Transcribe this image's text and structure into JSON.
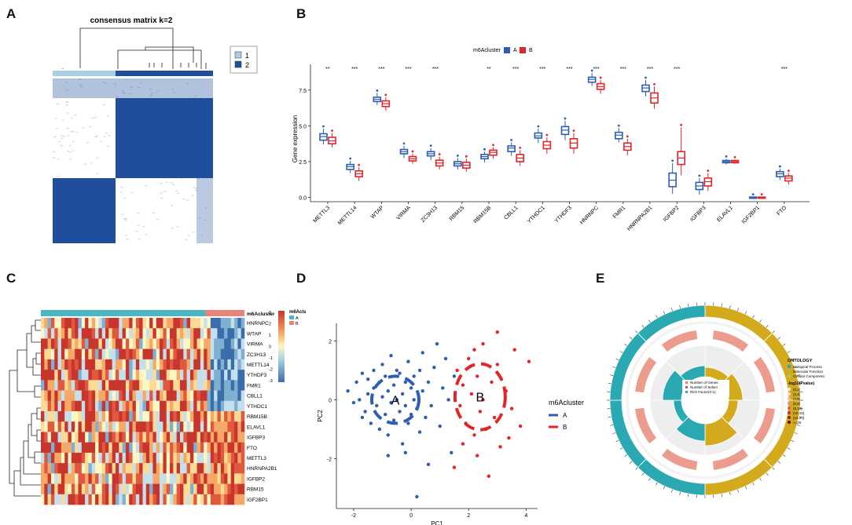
{
  "panels": {
    "A": {
      "letter": "A",
      "title": "consensus matrix k=2",
      "legend": [
        "1",
        "2"
      ],
      "colors": {
        "c1": "#a6cfe3",
        "c2": "#1f4f9c"
      }
    },
    "B": {
      "letter": "B",
      "legend_title": "m6Acluster",
      "legend_items": [
        "A",
        "B"
      ],
      "ylabel": "Gene expression",
      "colors": {
        "A": "#2c5fb3",
        "B": "#e0262b"
      }
    },
    "C": {
      "letter": "C",
      "annotation_label": "m6Acluster",
      "legend_title": "m6Acls",
      "legend_items": [
        "A",
        "B"
      ],
      "scale_ticks": [
        "3",
        "2",
        "1",
        "0",
        "-1",
        "-2",
        "-3"
      ],
      "genes": [
        "HNRNPC",
        "WTAP",
        "VIRMA",
        "ZC3H13",
        "METTL14",
        "YTHDF3",
        "FMR1",
        "CBLL1",
        "YTHDC1",
        "RBM15B",
        "ELAVL1",
        "IGFBP3",
        "FTO",
        "METTL3",
        "HNRNPA2B1",
        "IGFBP2",
        "RBM15",
        "IGF2BP1"
      ],
      "colors": {
        "A": "#4ab8c1",
        "B": "#e8837a"
      }
    },
    "D": {
      "letter": "D",
      "legend_title": "m6Acluster",
      "legend_items": [
        "A",
        "B"
      ],
      "colors": {
        "A": "#2c5fb3",
        "B": "#e0262b"
      }
    },
    "E": {
      "letter": "E",
      "ontology_title": "ONTOLOGY",
      "ontology_items": [
        "Biological Process",
        "Molecular Function",
        "Cellular Component"
      ],
      "pval_title": "-log10(Pvalue)",
      "pval_items": [
        "(0,2]",
        "(2,4]",
        "(4,6]",
        "(6,8]",
        "(8,10]",
        "(10,15]",
        "(15,20]",
        ">=20"
      ],
      "center_legend": [
        "Number of Genes",
        "Number of Select",
        "Rich Factor(0-1)"
      ],
      "colors": {
        "bp": "#2aa9b3",
        "mf": "#d4aa1d",
        "cc": "#a8c85a"
      }
    }
  },
  "chart_data": [
    {
      "panel": "A",
      "type": "heatmap",
      "title": "consensus matrix k=2",
      "clusters": [
        "1",
        "2"
      ],
      "cluster_fraction": [
        0.29,
        0.71
      ],
      "description_values": "block-diagonal consensus matrix with two clusters"
    },
    {
      "panel": "B",
      "type": "box",
      "ylabel": "Gene expression",
      "ylim": [
        -0.3,
        9.3
      ],
      "yticks": [
        0.0,
        2.5,
        5.0,
        7.5
      ],
      "ytick_labels": [
        "0.0",
        "2.5",
        "5.0",
        "7.5"
      ],
      "categories": [
        "METTL3",
        "METTL14",
        "WTAP",
        "VIRMA",
        "ZC3H13",
        "RBM15",
        "RBM15B",
        "CBLL1",
        "YTHDC1",
        "YTHDF3",
        "HNRNPC",
        "FMR1",
        "HNRNPA2B1",
        "IGFBP2",
        "IGFBP3",
        "ELAVL1",
        "IGF2BP1",
        "FTO"
      ],
      "significance": [
        "**",
        "***",
        "***",
        "***",
        "***",
        "",
        "**",
        "***",
        "***",
        "***",
        "***",
        "***",
        "***",
        "***",
        "",
        "",
        "",
        "***"
      ],
      "series": [
        {
          "name": "A",
          "median": [
            4.25,
            2.15,
            6.85,
            3.2,
            3.05,
            2.35,
            2.85,
            3.45,
            4.3,
            4.7,
            8.25,
            4.35,
            7.65,
            1.2,
            0.8,
            2.5,
            0.0,
            1.65
          ],
          "q1": [
            4.0,
            1.95,
            6.7,
            3.05,
            2.9,
            2.2,
            2.7,
            3.2,
            4.15,
            4.4,
            8.05,
            4.1,
            7.4,
            0.75,
            0.55,
            2.42,
            -0.02,
            1.45
          ],
          "q3": [
            4.45,
            2.3,
            7.0,
            3.35,
            3.2,
            2.5,
            3.0,
            3.6,
            4.5,
            4.95,
            8.4,
            4.55,
            7.85,
            1.7,
            1.05,
            2.58,
            0.02,
            1.8
          ],
          "wlo": [
            3.7,
            1.7,
            6.45,
            2.75,
            2.6,
            1.95,
            2.45,
            2.9,
            3.8,
            4.0,
            7.8,
            3.85,
            7.05,
            0.25,
            0.2,
            2.3,
            -0.05,
            1.2
          ],
          "whi": [
            4.8,
            2.55,
            7.3,
            3.6,
            3.45,
            2.75,
            3.2,
            3.85,
            4.8,
            5.35,
            8.7,
            4.85,
            8.2,
            2.4,
            1.35,
            2.7,
            0.05,
            2.0
          ]
        },
        {
          "name": "B",
          "median": [
            3.95,
            1.65,
            6.55,
            2.7,
            2.4,
            2.25,
            3.15,
            2.75,
            3.65,
            3.8,
            7.75,
            3.55,
            6.95,
            2.75,
            1.1,
            2.5,
            0.0,
            1.35
          ],
          "q1": [
            3.75,
            1.45,
            6.35,
            2.55,
            2.2,
            2.05,
            2.95,
            2.5,
            3.4,
            3.45,
            7.55,
            3.3,
            6.6,
            2.3,
            0.8,
            2.42,
            -0.02,
            1.15
          ],
          "q3": [
            4.2,
            1.85,
            6.75,
            2.85,
            2.6,
            2.45,
            3.3,
            3.0,
            3.9,
            4.1,
            7.95,
            3.8,
            7.3,
            3.2,
            1.35,
            2.58,
            0.02,
            1.5
          ],
          "wlo": [
            3.5,
            1.15,
            6.05,
            2.35,
            1.95,
            1.8,
            2.7,
            2.2,
            3.05,
            3.05,
            7.25,
            2.95,
            6.2,
            1.55,
            0.45,
            2.35,
            -0.05,
            0.9
          ],
          "whi": [
            4.5,
            2.1,
            7.0,
            3.05,
            2.85,
            2.7,
            3.5,
            3.3,
            4.2,
            4.5,
            8.2,
            4.1,
            7.75,
            4.9,
            1.7,
            2.65,
            0.05,
            1.7
          ]
        }
      ]
    },
    {
      "panel": "C",
      "type": "heatmap",
      "rows": 18,
      "cols": 60,
      "cluster_split_col": 50,
      "value_range": [
        -3,
        3
      ]
    },
    {
      "panel": "D",
      "type": "scatter",
      "xlabel": "PC1",
      "ylabel": "PC2",
      "xlim": [
        -2.6,
        4.4
      ],
      "ylim": [
        -3.7,
        2.6
      ],
      "xticks": [
        -2,
        0,
        2,
        4
      ],
      "yticks": [
        -2,
        0,
        2
      ],
      "series": [
        {
          "name": "A",
          "label": "A",
          "center": [
            -0.55,
            0.0
          ],
          "points": [
            [
              -2.2,
              0.3
            ],
            [
              -2.0,
              -0.1
            ],
            [
              -1.9,
              0.6
            ],
            [
              -1.8,
              0.0
            ],
            [
              -1.7,
              0.9
            ],
            [
              -1.6,
              -0.4
            ],
            [
              -1.5,
              0.2
            ],
            [
              -1.5,
              0.7
            ],
            [
              -1.4,
              -0.8
            ],
            [
              -1.3,
              0.4
            ],
            [
              -1.3,
              1.0
            ],
            [
              -1.2,
              -0.2
            ],
            [
              -1.1,
              0.6
            ],
            [
              -1.1,
              -1.0
            ],
            [
              -1.0,
              0.1
            ],
            [
              -1.0,
              1.2
            ],
            [
              -0.9,
              -0.5
            ],
            [
              -0.9,
              0.8
            ],
            [
              -0.8,
              0.3
            ],
            [
              -0.8,
              -1.2
            ],
            [
              -0.7,
              1.5
            ],
            [
              -0.7,
              -0.1
            ],
            [
              -0.6,
              0.5
            ],
            [
              -0.6,
              -0.7
            ],
            [
              -0.5,
              1.0
            ],
            [
              -0.5,
              0.0
            ],
            [
              -0.4,
              -0.4
            ],
            [
              -0.4,
              0.9
            ],
            [
              -0.3,
              0.2
            ],
            [
              -0.3,
              -1.5
            ],
            [
              -0.2,
              0.6
            ],
            [
              -0.2,
              -0.2
            ],
            [
              -0.1,
              1.3
            ],
            [
              -0.1,
              -0.8
            ],
            [
              0.0,
              0.4
            ],
            [
              0.0,
              -0.5
            ],
            [
              0.1,
              0.8
            ],
            [
              0.1,
              0.0
            ],
            [
              0.2,
              -0.3
            ],
            [
              0.3,
              1.0
            ],
            [
              0.3,
              -1.1
            ],
            [
              0.4,
              0.3
            ],
            [
              0.5,
              -0.6
            ],
            [
              0.6,
              0.6
            ],
            [
              0.7,
              -0.2
            ],
            [
              0.8,
              1.1
            ],
            [
              1.0,
              -0.9
            ],
            [
              1.1,
              0.4
            ],
            [
              1.2,
              1.4
            ],
            [
              1.3,
              0.0
            ],
            [
              1.4,
              -1.8
            ],
            [
              0.6,
              -2.2
            ],
            [
              -0.2,
              -1.8
            ],
            [
              0.9,
              1.9
            ],
            [
              -1.7,
              -0.6
            ],
            [
              1.5,
              0.8
            ],
            [
              0.4,
              1.6
            ],
            [
              -0.8,
              -1.9
            ],
            [
              0.2,
              -3.3
            ]
          ]
        },
        {
          "name": "B",
          "label": "B",
          "center": [
            2.4,
            0.1
          ],
          "points": [
            [
              1.6,
              1.0
            ],
            [
              1.7,
              -0.2
            ],
            [
              1.8,
              0.5
            ],
            [
              1.9,
              -0.8
            ],
            [
              2.0,
              1.4
            ],
            [
              2.1,
              0.2
            ],
            [
              2.2,
              -1.2
            ],
            [
              2.3,
              0.8
            ],
            [
              2.4,
              -0.4
            ],
            [
              2.5,
              1.9
            ],
            [
              2.5,
              0.0
            ],
            [
              2.6,
              -1.0
            ],
            [
              2.8,
              0.6
            ],
            [
              2.9,
              -0.6
            ],
            [
              3.0,
              2.3
            ],
            [
              3.0,
              1.2
            ],
            [
              3.1,
              -1.6
            ],
            [
              3.3,
              0.3
            ],
            [
              3.5,
              -0.3
            ],
            [
              3.6,
              1.7
            ],
            [
              3.8,
              -0.9
            ],
            [
              4.1,
              1.3
            ],
            [
              2.3,
              -1.9
            ],
            [
              1.5,
              -2.3
            ],
            [
              2.7,
              -2.6
            ],
            [
              2.2,
              1.7
            ],
            [
              1.8,
              -1.5
            ],
            [
              3.4,
              -1.3
            ]
          ]
        }
      ]
    },
    {
      "panel": "E",
      "type": "circular-enrichment",
      "sectors": 8,
      "inner_bar_fractions": [
        0.3,
        0.45,
        0.3,
        0.7,
        0.55,
        0.25,
        0.6,
        0.35
      ]
    }
  ]
}
